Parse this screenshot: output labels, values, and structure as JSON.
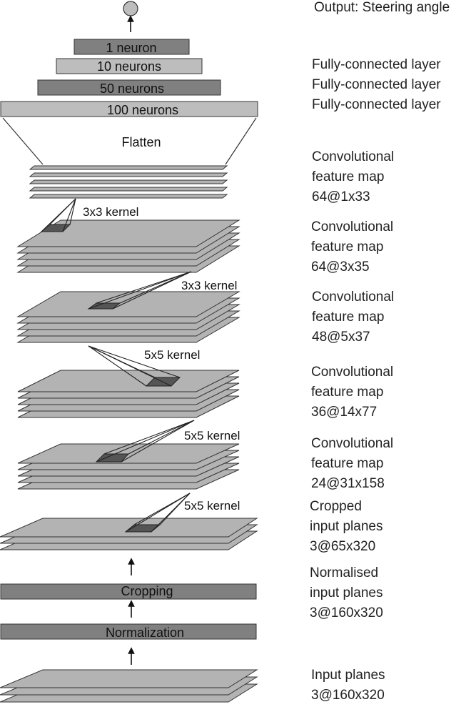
{
  "output": {
    "label": "Output: Steering angle"
  },
  "dense_layers": [
    {
      "name": "1 neuron",
      "label": ""
    },
    {
      "name": "10 neurons",
      "label": "Fully-connected layer"
    },
    {
      "name": "50 neurons",
      "label": "Fully-connected layer"
    },
    {
      "name": "100 neurons",
      "label": "Fully-connected layer"
    }
  ],
  "flatten": {
    "name": "Flatten"
  },
  "conv_maps": [
    {
      "lines": [
        "Convolutional",
        "feature map",
        "64@1x33"
      ],
      "kernel": "3x3 kernel"
    },
    {
      "lines": [
        "Convolutional",
        "feature map",
        "64@3x35"
      ],
      "kernel": "3x3 kernel"
    },
    {
      "lines": [
        "Convolutional",
        "feature map",
        "48@5x37"
      ],
      "kernel": "5x5 kernel"
    },
    {
      "lines": [
        "Convolutional",
        "feature map",
        "36@14x77"
      ],
      "kernel": "5x5 kernel"
    },
    {
      "lines": [
        "Convolutional",
        "feature map",
        "24@31x158"
      ],
      "kernel": "5x5 kernel"
    }
  ],
  "cropped": {
    "lines": [
      "Cropped",
      "input planes",
      "3@65x320"
    ]
  },
  "cropping": {
    "name": "Cropping"
  },
  "normalised": {
    "lines": [
      "Normalised",
      "input planes",
      "3@160x320"
    ]
  },
  "normalization": {
    "name": "Normalization"
  },
  "input": {
    "lines": [
      "Input planes",
      "3@160x320"
    ]
  },
  "colors": {
    "dark_block": "#808080",
    "light_block": "#bdbdbd",
    "plane": "#b3b3b3",
    "patch": "#555555",
    "stroke": "#333333"
  }
}
